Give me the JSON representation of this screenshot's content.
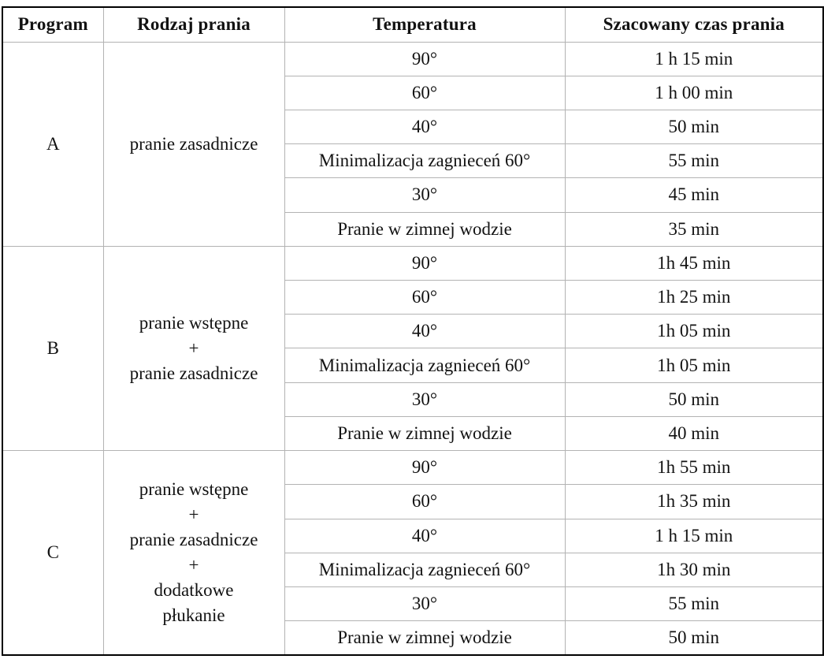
{
  "table": {
    "headers": {
      "program": "Program",
      "wash_type": "Rodzaj prania",
      "temperature": "Temperatura",
      "time": "Szacowany czas prania"
    },
    "sections": [
      {
        "program": "A",
        "wash_type": "pranie zasadnicze",
        "rows": [
          {
            "temperature": "90°",
            "time": "1 h 15 min"
          },
          {
            "temperature": "60°",
            "time": "1 h 00 min"
          },
          {
            "temperature": "40°",
            "time": "50 min"
          },
          {
            "temperature": "Minimalizacja zagnieceń 60°",
            "time": "55 min"
          },
          {
            "temperature": "30°",
            "time": "45 min"
          },
          {
            "temperature": "Pranie w zimnej wodzie",
            "time": "35 min"
          }
        ]
      },
      {
        "program": "B",
        "wash_type": "pranie wstępne\n+\npranie zasadnicze",
        "rows": [
          {
            "temperature": "90°",
            "time": "1h 45 min"
          },
          {
            "temperature": "60°",
            "time": "1h 25 min"
          },
          {
            "temperature": "40°",
            "time": "1h 05 min"
          },
          {
            "temperature": "Minimalizacja zagnieceń 60°",
            "time": "1h 05 min"
          },
          {
            "temperature": "30°",
            "time": "50 min"
          },
          {
            "temperature": "Pranie w zimnej wodzie",
            "time": "40 min"
          }
        ]
      },
      {
        "program": "C",
        "wash_type": "pranie wstępne\n+\npranie zasadnicze\n+\ndodatkowe\npłukanie",
        "rows": [
          {
            "temperature": "90°",
            "time": "1h 55 min"
          },
          {
            "temperature": "60°",
            "time": "1h 35 min"
          },
          {
            "temperature": "40°",
            "time": "1 h 15 min"
          },
          {
            "temperature": "Minimalizacja zagnieceń 60°",
            "time": "1h 30 min"
          },
          {
            "temperature": "30°",
            "time": "55 min"
          },
          {
            "temperature": "Pranie w zimnej wodzie",
            "time": "50 min"
          }
        ]
      }
    ]
  }
}
